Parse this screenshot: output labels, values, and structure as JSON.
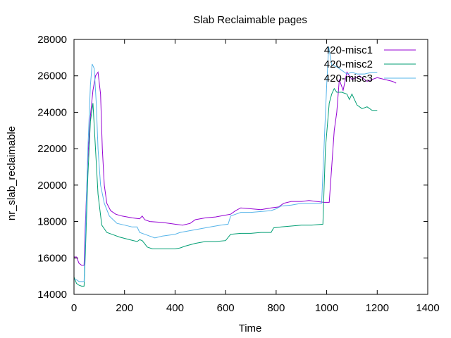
{
  "chart_data": {
    "type": "line",
    "title": "Slab Reclaimable pages",
    "xlabel": "Time",
    "ylabel": "nr_slab_reclaimable",
    "xlim": [
      0,
      1400
    ],
    "ylim": [
      14000,
      28000
    ],
    "xticks": [
      0,
      200,
      400,
      600,
      800,
      1000,
      1200,
      1400
    ],
    "yticks": [
      14000,
      16000,
      18000,
      20000,
      22000,
      24000,
      26000,
      28000
    ],
    "grid": false,
    "legend_position": "top-right",
    "series": [
      {
        "name": "420-misc1",
        "color": "#9400d3",
        "points": [
          [
            0,
            16050
          ],
          [
            10,
            16050
          ],
          [
            20,
            15700
          ],
          [
            30,
            15600
          ],
          [
            40,
            15600
          ],
          [
            45,
            17800
          ],
          [
            55,
            21500
          ],
          [
            65,
            23800
          ],
          [
            75,
            25200
          ],
          [
            85,
            26000
          ],
          [
            95,
            26200
          ],
          [
            105,
            25000
          ],
          [
            112,
            22000
          ],
          [
            120,
            20000
          ],
          [
            130,
            19000
          ],
          [
            145,
            18600
          ],
          [
            165,
            18400
          ],
          [
            190,
            18300
          ],
          [
            230,
            18200
          ],
          [
            260,
            18150
          ],
          [
            270,
            18300
          ],
          [
            280,
            18100
          ],
          [
            300,
            18000
          ],
          [
            350,
            17950
          ],
          [
            400,
            17850
          ],
          [
            430,
            17800
          ],
          [
            460,
            17900
          ],
          [
            480,
            18100
          ],
          [
            520,
            18200
          ],
          [
            560,
            18250
          ],
          [
            600,
            18350
          ],
          [
            620,
            18400
          ],
          [
            640,
            18600
          ],
          [
            660,
            18750
          ],
          [
            700,
            18700
          ],
          [
            740,
            18650
          ],
          [
            780,
            18750
          ],
          [
            810,
            18800
          ],
          [
            830,
            19000
          ],
          [
            860,
            19100
          ],
          [
            900,
            19100
          ],
          [
            930,
            19150
          ],
          [
            960,
            19100
          ],
          [
            990,
            19050
          ],
          [
            1010,
            19050
          ],
          [
            1020,
            21000
          ],
          [
            1030,
            23000
          ],
          [
            1040,
            24000
          ],
          [
            1050,
            25800
          ],
          [
            1065,
            25200
          ],
          [
            1080,
            26200
          ],
          [
            1100,
            25800
          ],
          [
            1130,
            26000
          ],
          [
            1160,
            25700
          ],
          [
            1200,
            25900
          ],
          [
            1230,
            25800
          ],
          [
            1260,
            25700
          ],
          [
            1275,
            25600
          ]
        ]
      },
      {
        "name": "420-misc2",
        "color": "#009e73",
        "points": [
          [
            0,
            14950
          ],
          [
            10,
            14600
          ],
          [
            20,
            14500
          ],
          [
            30,
            14450
          ],
          [
            40,
            14450
          ],
          [
            45,
            16200
          ],
          [
            55,
            20500
          ],
          [
            65,
            23500
          ],
          [
            75,
            24500
          ],
          [
            85,
            22000
          ],
          [
            95,
            19500
          ],
          [
            110,
            17800
          ],
          [
            130,
            17400
          ],
          [
            150,
            17300
          ],
          [
            180,
            17150
          ],
          [
            220,
            17000
          ],
          [
            250,
            16900
          ],
          [
            260,
            17000
          ],
          [
            270,
            16950
          ],
          [
            290,
            16600
          ],
          [
            310,
            16500
          ],
          [
            350,
            16500
          ],
          [
            400,
            16500
          ],
          [
            420,
            16550
          ],
          [
            440,
            16650
          ],
          [
            480,
            16800
          ],
          [
            520,
            16900
          ],
          [
            560,
            16900
          ],
          [
            600,
            16950
          ],
          [
            620,
            17300
          ],
          [
            660,
            17350
          ],
          [
            700,
            17350
          ],
          [
            740,
            17400
          ],
          [
            780,
            17400
          ],
          [
            790,
            17650
          ],
          [
            820,
            17700
          ],
          [
            860,
            17750
          ],
          [
            900,
            17800
          ],
          [
            940,
            17800
          ],
          [
            985,
            17850
          ],
          [
            995,
            22000
          ],
          [
            1010,
            24500
          ],
          [
            1020,
            25000
          ],
          [
            1030,
            25300
          ],
          [
            1040,
            25100
          ],
          [
            1060,
            25100
          ],
          [
            1080,
            25000
          ],
          [
            1090,
            24700
          ],
          [
            1100,
            25000
          ],
          [
            1120,
            24400
          ],
          [
            1140,
            24200
          ],
          [
            1160,
            24300
          ],
          [
            1180,
            24100
          ],
          [
            1200,
            24100
          ]
        ]
      },
      {
        "name": "420-misc3",
        "color": "#56b4e9",
        "points": [
          [
            0,
            14800
          ],
          [
            10,
            14800
          ],
          [
            20,
            14700
          ],
          [
            30,
            14700
          ],
          [
            40,
            14700
          ],
          [
            45,
            17000
          ],
          [
            55,
            22000
          ],
          [
            65,
            25500
          ],
          [
            72,
            26650
          ],
          [
            80,
            26400
          ],
          [
            88,
            24500
          ],
          [
            95,
            22000
          ],
          [
            105,
            20000
          ],
          [
            120,
            19000
          ],
          [
            140,
            18300
          ],
          [
            170,
            17900
          ],
          [
            200,
            17800
          ],
          [
            230,
            17700
          ],
          [
            250,
            17700
          ],
          [
            260,
            17400
          ],
          [
            280,
            17300
          ],
          [
            300,
            17200
          ],
          [
            320,
            17100
          ],
          [
            350,
            17200
          ],
          [
            400,
            17300
          ],
          [
            420,
            17400
          ],
          [
            460,
            17500
          ],
          [
            500,
            17600
          ],
          [
            540,
            17700
          ],
          [
            580,
            17800
          ],
          [
            610,
            17850
          ],
          [
            620,
            18300
          ],
          [
            640,
            18400
          ],
          [
            660,
            18500
          ],
          [
            700,
            18500
          ],
          [
            740,
            18550
          ],
          [
            780,
            18600
          ],
          [
            800,
            18700
          ],
          [
            820,
            18850
          ],
          [
            860,
            18900
          ],
          [
            900,
            19000
          ],
          [
            960,
            19000
          ],
          [
            980,
            19000
          ],
          [
            1000,
            25500
          ],
          [
            1008,
            27600
          ],
          [
            1020,
            26600
          ],
          [
            1040,
            26500
          ],
          [
            1060,
            26300
          ],
          [
            1080,
            26100
          ],
          [
            1100,
            26200
          ],
          [
            1120,
            26100
          ],
          [
            1150,
            26100
          ],
          [
            1180,
            26200
          ],
          [
            1200,
            26200
          ]
        ]
      }
    ]
  }
}
